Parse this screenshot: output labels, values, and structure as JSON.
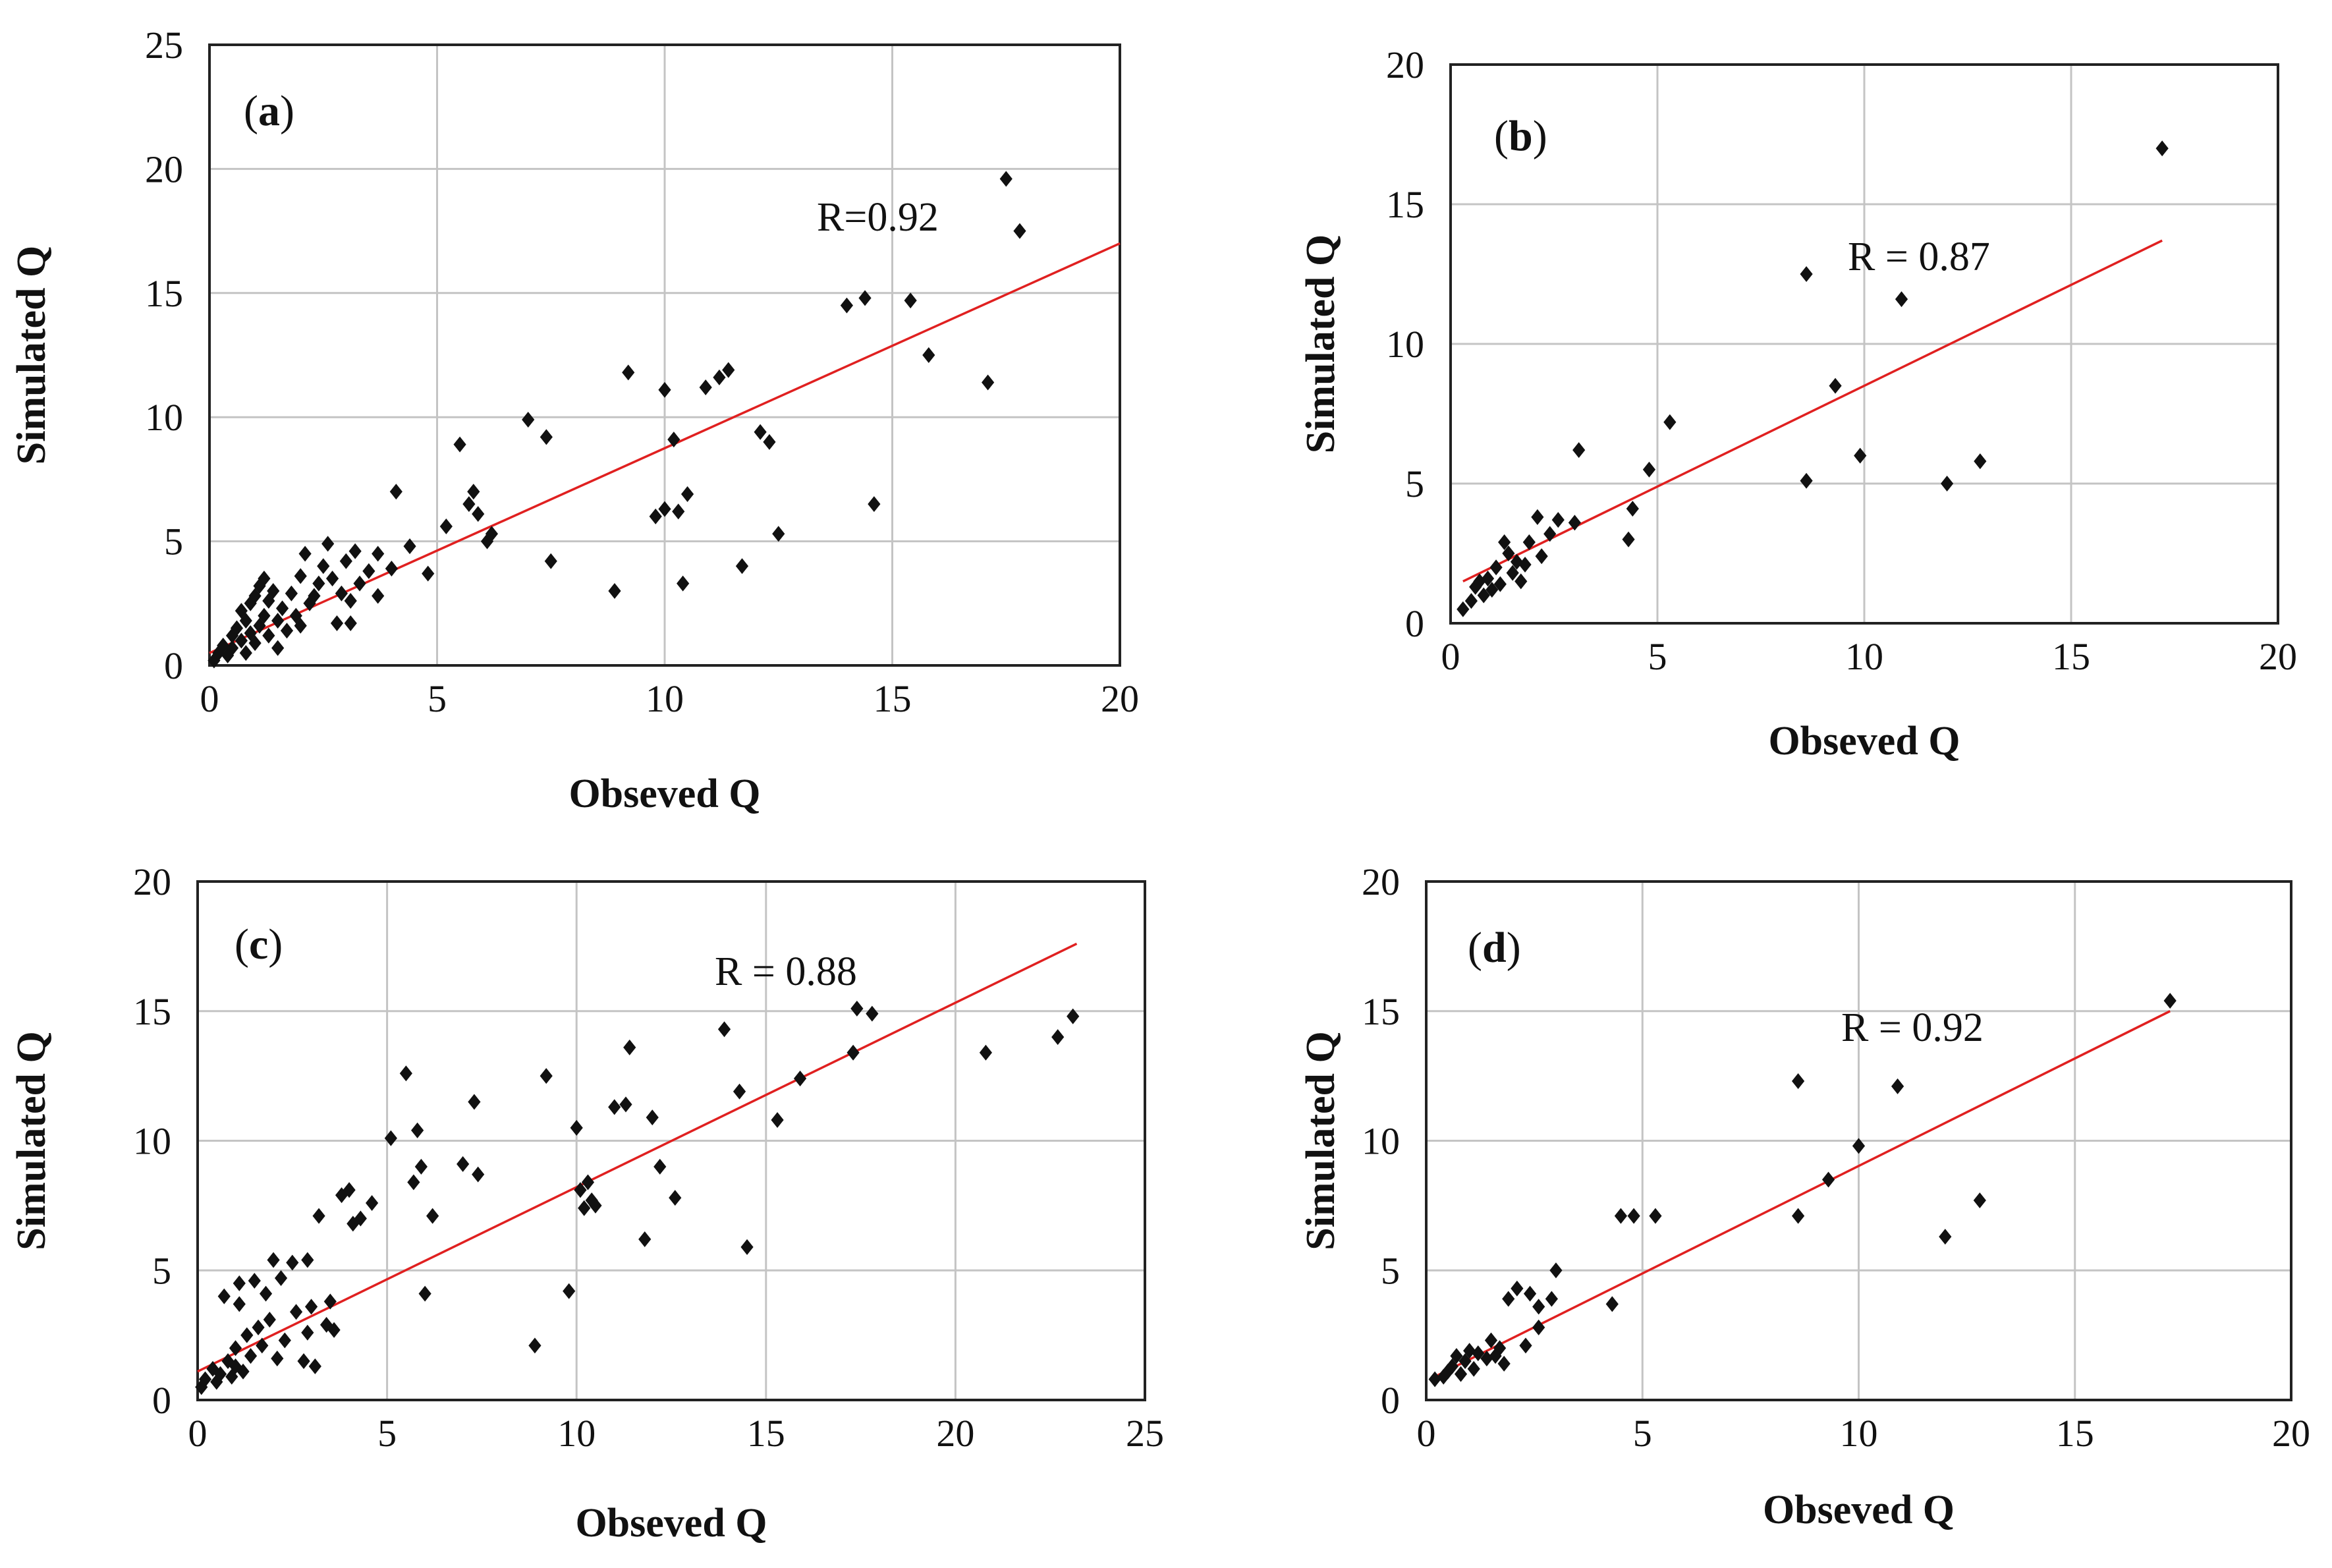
{
  "figure": {
    "background": "#ffffff",
    "point_color": "#111111",
    "trend_color": "#e02020",
    "grid_color": "#c4c4c4"
  },
  "chart_data": [
    {
      "id": "a",
      "type": "scatter",
      "panel_label": {
        "open": "(",
        "letter": "a",
        "close": ")"
      },
      "r_label": "R=0.92",
      "xlabel": "Obseved Q",
      "ylabel": "Simulated Q",
      "xlim": [
        0,
        20
      ],
      "ylim": [
        0,
        25
      ],
      "xticks": [
        0,
        5,
        10,
        15,
        20
      ],
      "yticks": [
        0,
        5,
        10,
        15,
        20,
        25
      ],
      "trendline": {
        "x": [
          0,
          20
        ],
        "y": [
          0.5,
          17
        ]
      },
      "points": [
        [
          0.1,
          0.2
        ],
        [
          0.2,
          0.5
        ],
        [
          0.3,
          0.8
        ],
        [
          0.4,
          0.4
        ],
        [
          0.5,
          1.2
        ],
        [
          0.5,
          0.7
        ],
        [
          0.6,
          1.5
        ],
        [
          0.7,
          1.0
        ],
        [
          0.7,
          2.2
        ],
        [
          0.8,
          1.8
        ],
        [
          0.8,
          0.5
        ],
        [
          0.9,
          2.5
        ],
        [
          0.9,
          1.3
        ],
        [
          1.0,
          2.8
        ],
        [
          1.0,
          0.9
        ],
        [
          1.1,
          3.2
        ],
        [
          1.1,
          1.6
        ],
        [
          1.2,
          2.0
        ],
        [
          1.2,
          3.5
        ],
        [
          1.3,
          1.2
        ],
        [
          1.3,
          2.6
        ],
        [
          1.4,
          3.0
        ],
        [
          1.5,
          1.8
        ],
        [
          1.5,
          0.7
        ],
        [
          1.6,
          2.3
        ],
        [
          1.7,
          1.4
        ],
        [
          1.8,
          2.9
        ],
        [
          1.9,
          2.0
        ],
        [
          2.0,
          1.6
        ],
        [
          2.0,
          3.6
        ],
        [
          2.1,
          4.5
        ],
        [
          2.2,
          2.5
        ],
        [
          2.3,
          2.8
        ],
        [
          2.4,
          3.3
        ],
        [
          2.5,
          4.0
        ],
        [
          2.6,
          4.9
        ],
        [
          2.7,
          3.5
        ],
        [
          2.8,
          1.7
        ],
        [
          2.9,
          2.9
        ],
        [
          3.0,
          4.2
        ],
        [
          3.1,
          1.7
        ],
        [
          3.1,
          2.6
        ],
        [
          3.2,
          4.6
        ],
        [
          3.3,
          3.3
        ],
        [
          3.5,
          3.8
        ],
        [
          3.7,
          4.5
        ],
        [
          3.7,
          2.8
        ],
        [
          4.0,
          3.9
        ],
        [
          4.1,
          7.0
        ],
        [
          4.4,
          4.8
        ],
        [
          4.8,
          3.7
        ],
        [
          5.2,
          5.6
        ],
        [
          5.5,
          8.9
        ],
        [
          5.7,
          6.5
        ],
        [
          5.8,
          7.0
        ],
        [
          5.9,
          6.1
        ],
        [
          6.1,
          5.0
        ],
        [
          6.2,
          5.3
        ],
        [
          7.0,
          9.9
        ],
        [
          7.4,
          9.2
        ],
        [
          7.5,
          4.2
        ],
        [
          8.9,
          3.0
        ],
        [
          9.2,
          11.8
        ],
        [
          9.8,
          6.0
        ],
        [
          10.0,
          11.1
        ],
        [
          10.0,
          6.3
        ],
        [
          10.2,
          9.1
        ],
        [
          10.3,
          6.2
        ],
        [
          10.4,
          3.3
        ],
        [
          10.5,
          6.9
        ],
        [
          10.9,
          11.2
        ],
        [
          11.2,
          11.6
        ],
        [
          11.4,
          11.9
        ],
        [
          11.7,
          4.0
        ],
        [
          12.1,
          9.4
        ],
        [
          12.3,
          9.0
        ],
        [
          12.5,
          5.3
        ],
        [
          14.0,
          14.5
        ],
        [
          14.4,
          14.8
        ],
        [
          14.6,
          6.5
        ],
        [
          15.4,
          14.7
        ],
        [
          15.8,
          12.5
        ],
        [
          17.1,
          11.4
        ],
        [
          17.5,
          19.6
        ],
        [
          17.8,
          17.5
        ]
      ]
    },
    {
      "id": "b",
      "type": "scatter",
      "panel_label": {
        "open": "(",
        "letter": "b",
        "close": ")"
      },
      "r_label": "R = 0.87",
      "xlabel": "Obseved Q",
      "ylabel": "Simulated Q",
      "xlim": [
        0,
        20
      ],
      "ylim": [
        0,
        20
      ],
      "xticks": [
        0,
        5,
        10,
        15,
        20
      ],
      "yticks": [
        0,
        5,
        10,
        15,
        20
      ],
      "trendline": {
        "x": [
          0.3,
          17.2
        ],
        "y": [
          1.5,
          13.7
        ]
      },
      "points": [
        [
          0.3,
          0.5
        ],
        [
          0.5,
          0.8
        ],
        [
          0.6,
          1.3
        ],
        [
          0.7,
          1.5
        ],
        [
          0.8,
          1.0
        ],
        [
          0.9,
          1.6
        ],
        [
          1.0,
          1.2
        ],
        [
          1.1,
          2.0
        ],
        [
          1.2,
          1.4
        ],
        [
          1.3,
          2.9
        ],
        [
          1.4,
          2.5
        ],
        [
          1.5,
          1.8
        ],
        [
          1.6,
          2.2
        ],
        [
          1.7,
          1.5
        ],
        [
          1.8,
          2.1
        ],
        [
          1.9,
          2.9
        ],
        [
          2.1,
          3.8
        ],
        [
          2.2,
          2.4
        ],
        [
          2.4,
          3.2
        ],
        [
          2.6,
          3.7
        ],
        [
          3.0,
          3.6
        ],
        [
          3.1,
          6.2
        ],
        [
          4.3,
          3.0
        ],
        [
          4.4,
          4.1
        ],
        [
          4.8,
          5.5
        ],
        [
          5.3,
          7.2
        ],
        [
          8.6,
          12.5
        ],
        [
          8.6,
          5.1
        ],
        [
          9.3,
          8.5
        ],
        [
          9.9,
          6.0
        ],
        [
          10.9,
          11.6
        ],
        [
          12.0,
          5.0
        ],
        [
          12.8,
          5.8
        ],
        [
          17.2,
          17.0
        ]
      ]
    },
    {
      "id": "c",
      "type": "scatter",
      "panel_label": {
        "open": "(",
        "letter": "c",
        "close": ")"
      },
      "r_label": "R = 0.88",
      "xlabel": "Obseved Q",
      "ylabel": "Simulated Q",
      "xlim": [
        0,
        25
      ],
      "ylim": [
        0,
        20
      ],
      "xticks": [
        0,
        5,
        10,
        15,
        20,
        25
      ],
      "yticks": [
        0,
        5,
        10,
        15,
        20
      ],
      "trendline": {
        "x": [
          0,
          23.2
        ],
        "y": [
          1.1,
          17.6
        ]
      },
      "points": [
        [
          0.1,
          0.5
        ],
        [
          0.2,
          0.8
        ],
        [
          0.4,
          1.2
        ],
        [
          0.5,
          0.7
        ],
        [
          0.6,
          1.0
        ],
        [
          0.7,
          4.0
        ],
        [
          0.8,
          1.5
        ],
        [
          0.9,
          0.9
        ],
        [
          1.0,
          2.0
        ],
        [
          1.0,
          1.3
        ],
        [
          1.1,
          4.5
        ],
        [
          1.1,
          3.7
        ],
        [
          1.2,
          1.1
        ],
        [
          1.3,
          2.5
        ],
        [
          1.4,
          1.7
        ],
        [
          1.5,
          4.6
        ],
        [
          1.6,
          2.8
        ],
        [
          1.7,
          2.1
        ],
        [
          1.8,
          4.1
        ],
        [
          1.9,
          3.1
        ],
        [
          2.0,
          5.4
        ],
        [
          2.1,
          1.6
        ],
        [
          2.2,
          4.7
        ],
        [
          2.3,
          2.3
        ],
        [
          2.5,
          5.3
        ],
        [
          2.6,
          3.4
        ],
        [
          2.8,
          1.5
        ],
        [
          2.9,
          5.4
        ],
        [
          2.9,
          2.6
        ],
        [
          3.0,
          3.6
        ],
        [
          3.1,
          1.3
        ],
        [
          3.2,
          7.1
        ],
        [
          3.4,
          2.9
        ],
        [
          3.5,
          3.8
        ],
        [
          3.6,
          2.7
        ],
        [
          3.8,
          7.9
        ],
        [
          4.0,
          8.1
        ],
        [
          4.1,
          6.8
        ],
        [
          4.3,
          7.0
        ],
        [
          4.6,
          7.6
        ],
        [
          5.1,
          10.1
        ],
        [
          5.5,
          12.6
        ],
        [
          5.7,
          8.4
        ],
        [
          5.8,
          10.4
        ],
        [
          5.9,
          9.0
        ],
        [
          6.0,
          4.1
        ],
        [
          6.2,
          7.1
        ],
        [
          7.0,
          9.1
        ],
        [
          7.3,
          11.5
        ],
        [
          7.4,
          8.7
        ],
        [
          8.9,
          2.1
        ],
        [
          9.2,
          12.5
        ],
        [
          9.8,
          4.2
        ],
        [
          10.0,
          10.5
        ],
        [
          10.1,
          8.1
        ],
        [
          10.2,
          7.4
        ],
        [
          10.3,
          8.4
        ],
        [
          10.4,
          7.7
        ],
        [
          10.5,
          7.5
        ],
        [
          11.0,
          11.3
        ],
        [
          11.3,
          11.4
        ],
        [
          11.4,
          13.6
        ],
        [
          11.8,
          6.2
        ],
        [
          12.0,
          10.9
        ],
        [
          12.2,
          9.0
        ],
        [
          12.6,
          7.8
        ],
        [
          13.9,
          14.3
        ],
        [
          14.3,
          11.9
        ],
        [
          14.5,
          5.9
        ],
        [
          15.3,
          10.8
        ],
        [
          15.9,
          12.4
        ],
        [
          17.3,
          13.4
        ],
        [
          17.4,
          15.1
        ],
        [
          17.8,
          14.9
        ],
        [
          20.8,
          13.4
        ],
        [
          22.7,
          14.0
        ],
        [
          23.1,
          14.8
        ]
      ]
    },
    {
      "id": "d",
      "type": "scatter",
      "panel_label": {
        "open": "(",
        "letter": "d",
        "close": ")"
      },
      "r_label": "R = 0.92",
      "xlabel": "Obseved Q",
      "ylabel": "Simulated Q",
      "xlim": [
        0,
        20
      ],
      "ylim": [
        0,
        20
      ],
      "xticks": [
        0,
        5,
        10,
        15,
        20
      ],
      "yticks": [
        0,
        5,
        10,
        15,
        20
      ],
      "trendline": {
        "x": [
          0.2,
          17.2
        ],
        "y": [
          0.9,
          15.0
        ]
      },
      "points": [
        [
          0.2,
          0.8
        ],
        [
          0.4,
          0.9
        ],
        [
          0.5,
          1.1
        ],
        [
          0.6,
          1.3
        ],
        [
          0.7,
          1.7
        ],
        [
          0.8,
          1.0
        ],
        [
          0.9,
          1.5
        ],
        [
          1.0,
          1.9
        ],
        [
          1.1,
          1.2
        ],
        [
          1.2,
          1.8
        ],
        [
          1.4,
          1.6
        ],
        [
          1.5,
          2.3
        ],
        [
          1.6,
          1.7
        ],
        [
          1.7,
          2.0
        ],
        [
          1.8,
          1.4
        ],
        [
          1.9,
          3.9
        ],
        [
          2.1,
          4.3
        ],
        [
          2.3,
          2.1
        ],
        [
          2.4,
          4.1
        ],
        [
          2.6,
          2.8
        ],
        [
          2.6,
          3.6
        ],
        [
          2.9,
          3.9
        ],
        [
          3.0,
          5.0
        ],
        [
          4.3,
          3.7
        ],
        [
          4.5,
          7.1
        ],
        [
          4.8,
          7.1
        ],
        [
          5.3,
          7.1
        ],
        [
          8.6,
          12.3
        ],
        [
          8.6,
          7.1
        ],
        [
          9.3,
          8.5
        ],
        [
          10.0,
          9.8
        ],
        [
          10.9,
          12.1
        ],
        [
          12.0,
          6.3
        ],
        [
          12.8,
          7.7
        ],
        [
          17.2,
          15.4
        ]
      ]
    }
  ]
}
